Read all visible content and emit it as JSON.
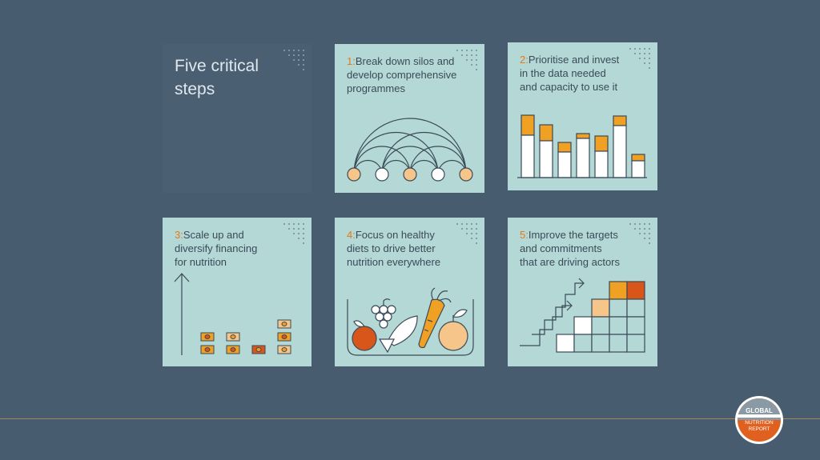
{
  "header": {
    "title": "Five critical steps"
  },
  "steps": [
    {
      "num": "1:",
      "text": "Break down silos and\ndevelop comprehensive\nprogrammes",
      "icon": "network-arcs-icon"
    },
    {
      "num": "2:",
      "text": "Prioritise and invest\nin the data needed\nand capacity to use it",
      "icon": "bar-chart-icon"
    },
    {
      "num": "3:",
      "text": "Scale up and\ndiversify financing\nfor nutrition",
      "icon": "money-stacks-icon"
    },
    {
      "num": "4:",
      "text": "Focus on healthy\ndiets to drive better\nnutrition everywhere",
      "icon": "healthy-food-bowl-icon"
    },
    {
      "num": "5:",
      "text": "Improve the targets\nand commitments\nthat are driving actors",
      "icon": "staircase-grid-icon"
    }
  ],
  "logo": {
    "line1": "GLOBAL",
    "line2": "NUTRITION",
    "line3": "REPORT"
  },
  "colors": {
    "background": "#475c6f",
    "card": "#b3d8d5",
    "accent": "#e27a1d",
    "stroke": "#3b4a58",
    "peach": "#f6c58a",
    "red": "#d9561b"
  }
}
